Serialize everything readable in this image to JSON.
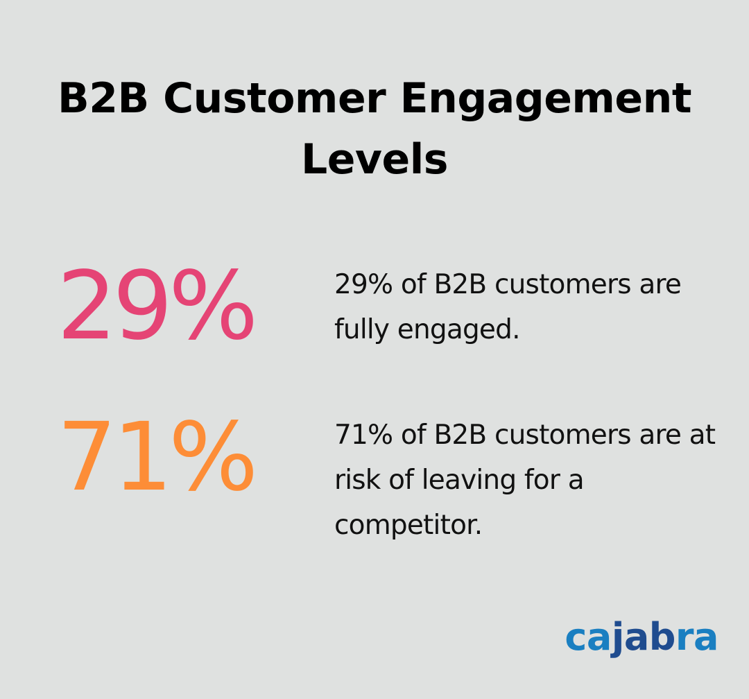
{
  "title": "B2B Customer Engagement Levels",
  "stats": [
    {
      "value": "29%",
      "color": "#e54475",
      "description": "29% of B2B customers are fully engaged."
    },
    {
      "value": "71%",
      "color": "#fd8d37",
      "description": "71% of B2B customers are at risk of leaving for a competitor."
    }
  ],
  "logo": {
    "part1": "ca",
    "part2": "jab",
    "part3": "ra",
    "light_color": "#1a7fc1",
    "dark_color": "#1f4c8f"
  },
  "background_color": "#dfe1e0"
}
